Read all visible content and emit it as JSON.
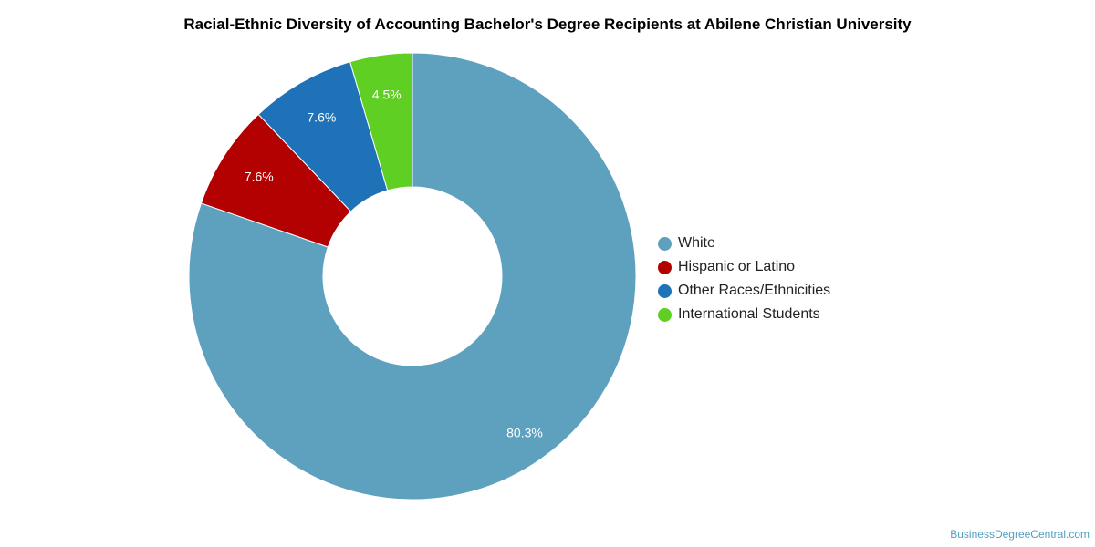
{
  "chart_data": {
    "type": "pie",
    "variant": "donut",
    "title": "Racial-Ethnic Diversity of Accounting Bachelor's Degree Recipients at Abilene Christian University",
    "slices": [
      {
        "name": "White",
        "value": 80.3,
        "label": "80.3%",
        "color": "#5ea1bf"
      },
      {
        "name": "Hispanic or Latino",
        "value": 7.6,
        "label": "7.6%",
        "color": "#b30000"
      },
      {
        "name": "Other Races/Ethnicities",
        "value": 7.6,
        "label": "7.6%",
        "color": "#1f72b8"
      },
      {
        "name": "International Students",
        "value": 4.5,
        "label": "4.5%",
        "color": "#5fcf23"
      }
    ],
    "legend_position": "right"
  },
  "credit": "BusinessDegreeCentral.com"
}
